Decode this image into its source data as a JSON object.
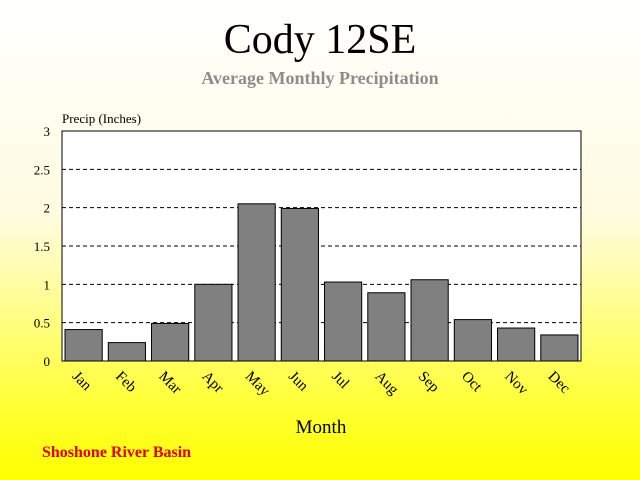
{
  "title": "Cody 12SE",
  "subtitle": "Average Monthly Precipitation",
  "footer": "Shoshone River Basin",
  "colors": {
    "bar_fill": "#808080",
    "bar_stroke": "#000000",
    "plot_background": "#ffffff",
    "subtitle": "#8c8c8c",
    "footer": "#e00000",
    "background_top": "#ffffff",
    "background_bottom": "#ffff00"
  },
  "chart_data": {
    "type": "bar",
    "title": "Cody 12SE",
    "subtitle": "Average Monthly Precipitation",
    "xlabel": "Month",
    "ylabel": "Precip (Inches)",
    "categories": [
      "Jan",
      "Feb",
      "Mar",
      "Apr",
      "May",
      "Jun",
      "Jul",
      "Aug",
      "Sep",
      "Oct",
      "Nov",
      "Dec"
    ],
    "values": [
      0.41,
      0.24,
      0.49,
      1.0,
      2.05,
      1.99,
      1.03,
      0.89,
      1.06,
      0.54,
      0.43,
      0.34
    ],
    "ylim": [
      0,
      3
    ],
    "yticks": [
      "0",
      "0.5",
      "1",
      "1.5",
      "2",
      "2.5",
      "3"
    ],
    "grid": "dashed horizontal",
    "legend": "none"
  }
}
